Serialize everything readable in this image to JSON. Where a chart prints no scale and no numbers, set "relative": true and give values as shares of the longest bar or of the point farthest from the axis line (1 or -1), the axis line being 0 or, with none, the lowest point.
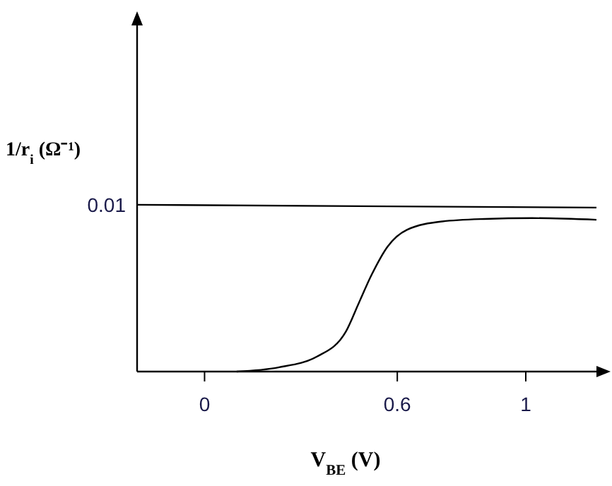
{
  "chart_data": {
    "type": "line",
    "relative": true,
    "xlabel": "V$_{BE}$ (V)",
    "ylabel": "1/r$_{i}$ (Ω⁻¹)",
    "xlim": [
      -0.21,
      1.22
    ],
    "xticks": [
      0,
      0.6,
      1
    ],
    "marker": "none",
    "line_style": "solid",
    "grid": false,
    "series": [
      {
        "color": "#000000",
        "x": [
          -0.21,
          1.22
        ],
        "values": [
          1,
          0.983
        ]
      },
      {
        "color": "#000000",
        "x": [
          0.1,
          0.23,
          0.35,
          0.44,
          0.48,
          0.52,
          0.57,
          0.63,
          0.74,
          0.87,
          1.02,
          1.22
        ],
        "values": [
          0,
          0.025,
          0.09,
          0.24,
          0.41,
          0.58,
          0.75,
          0.85,
          0.9,
          0.915,
          0.92,
          0.91
        ]
      }
    ],
    "annotations": [
      {
        "text": "0.01",
        "x": -0.21,
        "y": 1
      }
    ]
  }
}
